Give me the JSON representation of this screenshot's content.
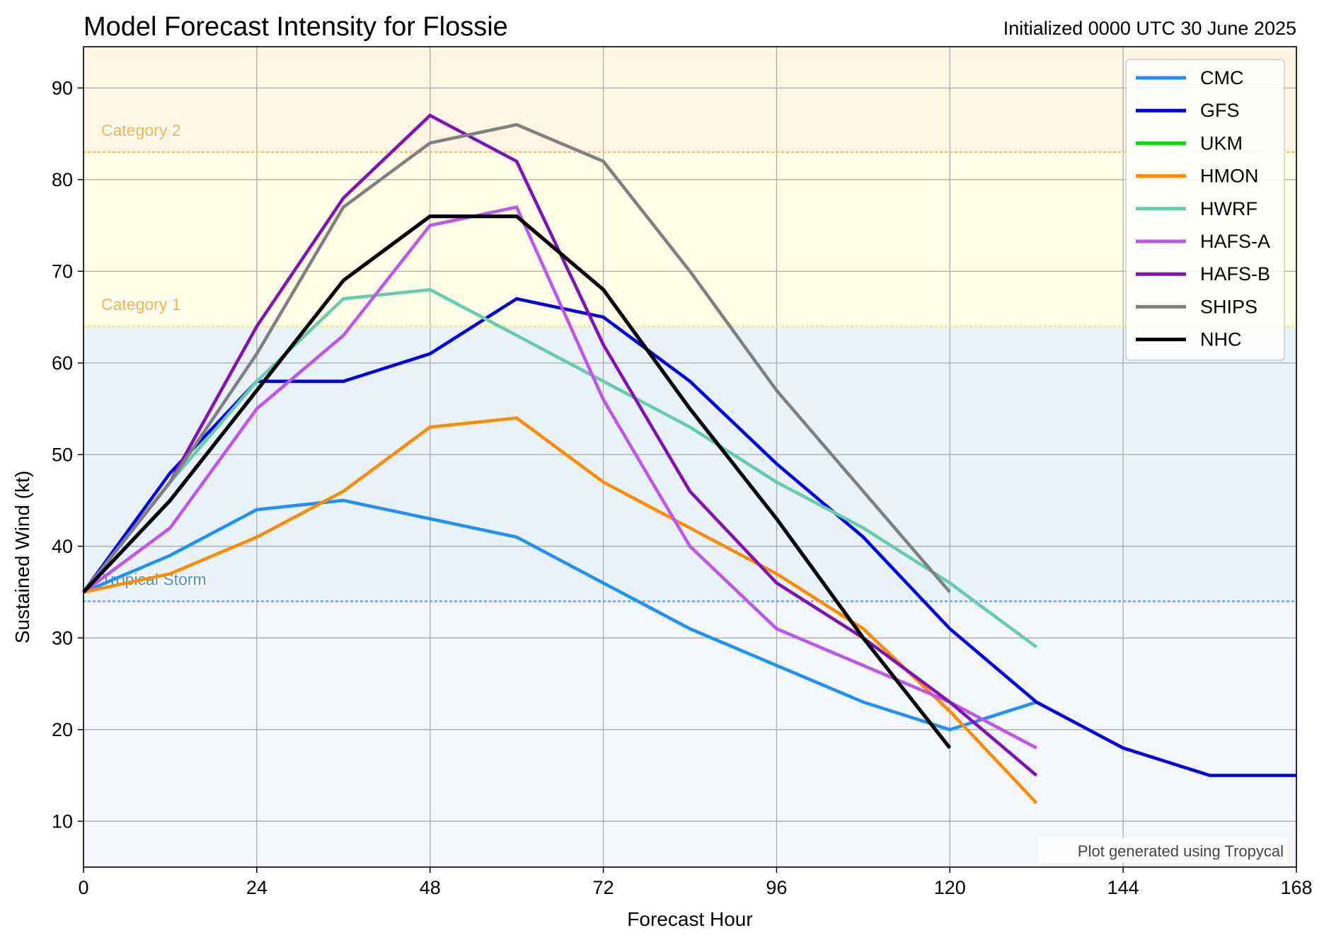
{
  "chart_data": {
    "type": "line",
    "title": "Model Forecast Intensity for Flossie",
    "subtitle": "Initialized 0000 UTC 30 June 2025",
    "xlabel": "Forecast Hour",
    "ylabel": "Sustained Wind (kt)",
    "xlim": [
      0,
      168
    ],
    "ylim": [
      5,
      94.5
    ],
    "xticks": [
      0,
      24,
      48,
      72,
      96,
      120,
      144,
      168
    ],
    "yticks": [
      10,
      20,
      30,
      40,
      50,
      60,
      70,
      80,
      90
    ],
    "grid": true,
    "legend_position": "top-right",
    "credit": "Plot generated using Tropycal",
    "bands": [
      {
        "from": 5,
        "to": 34,
        "color": "#f3f7fb"
      },
      {
        "from": 34,
        "to": 64,
        "color": "#e9f1f9"
      },
      {
        "from": 64,
        "to": 83,
        "color": "#fffee6"
      },
      {
        "from": 83,
        "to": 94.5,
        "color": "#fff5e4"
      }
    ],
    "thresholds": [
      {
        "label": "Tropical Storm",
        "value": 34,
        "color": "#6aaee6",
        "text_color": "#4a90d9"
      },
      {
        "label": "Category 1",
        "value": 64,
        "color": "#f3ee6a",
        "text_color": "#f5b43c"
      },
      {
        "label": "Category 2",
        "value": 83,
        "color": "#f7c25c",
        "text_color": "#f5b43c"
      }
    ],
    "series": [
      {
        "name": "CMC",
        "color": "#1e90ff",
        "x": [
          0,
          12,
          24,
          36,
          48,
          60,
          72,
          84,
          96,
          108,
          120,
          132
        ],
        "y": [
          35,
          39,
          44,
          45,
          43,
          41,
          36,
          31,
          27,
          23,
          20,
          23
        ]
      },
      {
        "name": "GFS",
        "color": "#0000ee",
        "x": [
          0,
          12,
          24,
          36,
          48,
          60,
          72,
          84,
          96,
          108,
          120,
          132,
          144,
          156,
          168
        ],
        "y": [
          35,
          48,
          58,
          58,
          61,
          67,
          65,
          58,
          49,
          41,
          31,
          23,
          18,
          15,
          15
        ]
      },
      {
        "name": "UKM",
        "color": "#00e000",
        "x": [],
        "y": []
      },
      {
        "name": "HMON",
        "color": "#ff8c00",
        "x": [
          0,
          12,
          24,
          36,
          48,
          60,
          72,
          84,
          96,
          108,
          120,
          132
        ],
        "y": [
          35,
          37,
          41,
          46,
          53,
          54,
          47,
          42,
          37,
          31,
          22,
          12
        ]
      },
      {
        "name": "HWRF",
        "color": "#66cdaa",
        "x": [
          0,
          12,
          24,
          36,
          48,
          60,
          72,
          84,
          96,
          108,
          120,
          132
        ],
        "y": [
          35,
          47,
          58,
          67,
          68,
          63,
          58,
          53,
          47,
          42,
          36,
          29
        ]
      },
      {
        "name": "HAFS-A",
        "color": "#bf55ec",
        "x": [
          0,
          12,
          24,
          36,
          48,
          60,
          72,
          84,
          96,
          108,
          120,
          132
        ],
        "y": [
          35,
          42,
          55,
          63,
          75,
          77,
          56,
          40,
          31,
          27,
          23,
          18
        ]
      },
      {
        "name": "HAFS-B",
        "color": "#8211b8",
        "x": [
          0,
          12,
          24,
          36,
          48,
          60,
          72,
          84,
          96,
          108,
          120,
          132
        ],
        "y": [
          35,
          47,
          64,
          78,
          87,
          82,
          62,
          46,
          36,
          30,
          23,
          15
        ]
      },
      {
        "name": "SHIPS",
        "color": "#808080",
        "x": [
          0,
          12,
          24,
          36,
          48,
          60,
          72,
          84,
          96,
          108,
          120
        ],
        "y": [
          35,
          47,
          61,
          77,
          84,
          86,
          82,
          70,
          57,
          46,
          35
        ]
      },
      {
        "name": "NHC",
        "color": "#000000",
        "x": [
          0,
          12,
          24,
          36,
          48,
          60,
          72,
          84,
          96,
          108,
          120
        ],
        "y": [
          35,
          45,
          57,
          69,
          76,
          76,
          68,
          55,
          43,
          30,
          18
        ]
      }
    ]
  }
}
